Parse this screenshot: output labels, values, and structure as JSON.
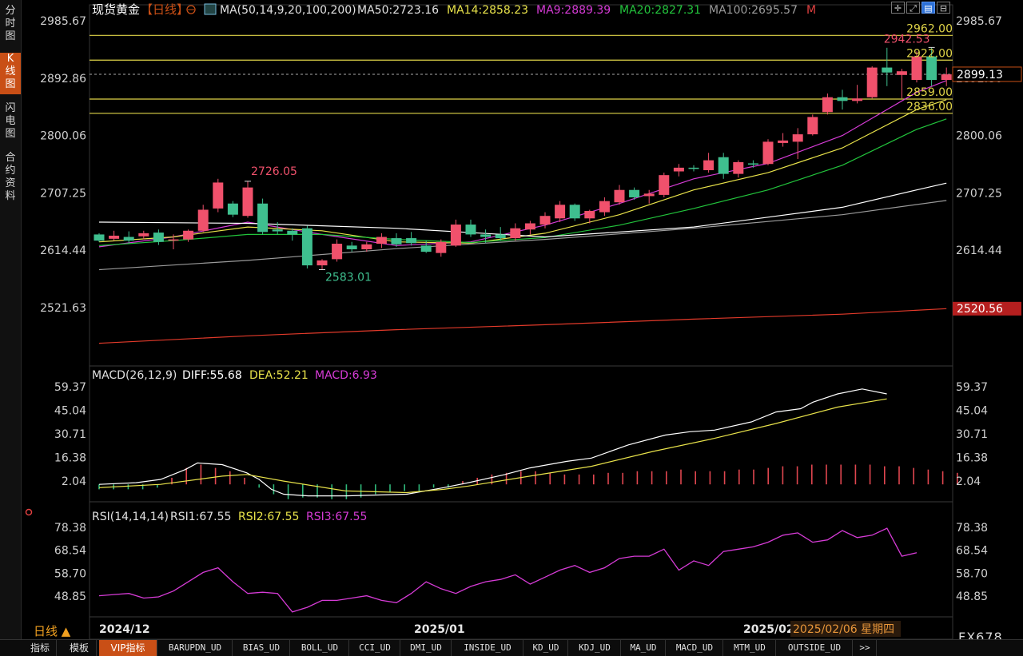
{
  "sidebar": {
    "tabs": [
      "分\n时\n图",
      "K\n线\n图",
      "闪\n电\n图",
      "合\n约\n资\n料"
    ],
    "active": 1
  },
  "header": {
    "title": "现货黄金",
    "period_tag": "【日线】",
    "ma_label": "MA(50,14,9,20,100,200)",
    "ma50": "MA50:2723.16",
    "ma14": "MA14:2858.23",
    "ma9": "MA9:2889.39",
    "ma20": "MA20:2827.31",
    "ma100": "MA100:2695.57",
    "m": "M",
    "toolbar_icons": [
      "crosshair-icon",
      "fullscreen-icon",
      "chart-type-icon",
      "minimize-icon"
    ]
  },
  "colors": {
    "up": "#f0516c",
    "down": "#3fbf8f",
    "ma50": "#ffffff",
    "ma14": "#e8e24a",
    "ma9": "#d63bd6",
    "ma20": "#22c43c",
    "ma100": "#9a9a9a",
    "ma200": "#e23a2a",
    "level": "#e0d448",
    "accent": "#c94f16"
  },
  "chart_data": [
    {
      "type": "candlestick",
      "title": "现货黄金 日线",
      "x_labels": [
        "2024/12",
        "2025/01",
        "2025/02"
      ],
      "date_readout": "2025/02/06 星期四",
      "y_ticks": [
        "2985.67",
        "2892.86",
        "2800.06",
        "2707.25",
        "2614.44",
        "2521.63"
      ],
      "ylim": [
        2450,
        3020
      ],
      "ohlc": [
        [
          2640,
          2642,
          2628,
          2630
        ],
        [
          2633,
          2646,
          2630,
          2638
        ],
        [
          2636,
          2645,
          2626,
          2630
        ],
        [
          2637,
          2646,
          2632,
          2642
        ],
        [
          2643,
          2648,
          2623,
          2628
        ],
        [
          2630,
          2640,
          2616,
          2632
        ],
        [
          2632,
          2648,
          2628,
          2646
        ],
        [
          2646,
          2688,
          2644,
          2680
        ],
        [
          2682,
          2730,
          2676,
          2724
        ],
        [
          2690,
          2694,
          2668,
          2672
        ],
        [
          2670,
          2726,
          2667,
          2716
        ],
        [
          2690,
          2698,
          2640,
          2644
        ],
        [
          2648,
          2660,
          2640,
          2645
        ],
        [
          2646,
          2650,
          2630,
          2640
        ],
        [
          2650,
          2654,
          2585,
          2590
        ],
        [
          2590,
          2600,
          2583,
          2598
        ],
        [
          2600,
          2632,
          2596,
          2625
        ],
        [
          2622,
          2628,
          2612,
          2616
        ],
        [
          2616,
          2628,
          2612,
          2624
        ],
        [
          2625,
          2642,
          2618,
          2636
        ],
        [
          2634,
          2642,
          2620,
          2624
        ],
        [
          2634,
          2644,
          2622,
          2626
        ],
        [
          2622,
          2630,
          2610,
          2612
        ],
        [
          2610,
          2632,
          2604,
          2628
        ],
        [
          2622,
          2664,
          2620,
          2656
        ],
        [
          2656,
          2664,
          2636,
          2640
        ],
        [
          2640,
          2648,
          2626,
          2636
        ],
        [
          2640,
          2652,
          2630,
          2634
        ],
        [
          2634,
          2658,
          2630,
          2650
        ],
        [
          2648,
          2662,
          2640,
          2658
        ],
        [
          2656,
          2676,
          2650,
          2670
        ],
        [
          2666,
          2694,
          2660,
          2688
        ],
        [
          2688,
          2690,
          2662,
          2666
        ],
        [
          2666,
          2680,
          2658,
          2678
        ],
        [
          2676,
          2700,
          2670,
          2694
        ],
        [
          2692,
          2720,
          2688,
          2712
        ],
        [
          2712,
          2716,
          2696,
          2700
        ],
        [
          2702,
          2712,
          2690,
          2706
        ],
        [
          2704,
          2740,
          2700,
          2736
        ],
        [
          2742,
          2754,
          2734,
          2748
        ],
        [
          2748,
          2752,
          2742,
          2746
        ],
        [
          2744,
          2772,
          2740,
          2760
        ],
        [
          2765,
          2772,
          2730,
          2738
        ],
        [
          2738,
          2760,
          2732,
          2757
        ],
        [
          2755,
          2760,
          2748,
          2754
        ],
        [
          2754,
          2794,
          2752,
          2790
        ],
        [
          2788,
          2804,
          2782,
          2792
        ],
        [
          2790,
          2812,
          2762,
          2802
        ],
        [
          2802,
          2834,
          2800,
          2830
        ],
        [
          2838,
          2868,
          2834,
          2862
        ],
        [
          2862,
          2874,
          2842,
          2856
        ],
        [
          2856,
          2882,
          2852,
          2860
        ],
        [
          2862,
          2912,
          2860,
          2910
        ],
        [
          2910,
          2942,
          2880,
          2902
        ],
        [
          2898,
          2908,
          2860,
          2904
        ],
        [
          2890,
          2936,
          2886,
          2928
        ],
        [
          2928,
          2943,
          2880,
          2890
        ],
        [
          2890,
          2910,
          2880,
          2899
        ]
      ],
      "price_labels": [
        "2726.05",
        "2583.01",
        "2942.53"
      ],
      "levels": [
        "2962.00",
        "2922.00",
        "2859.00",
        "2836.00"
      ],
      "current_price": "2899.13",
      "ma200_value": "2520.56",
      "series": [
        {
          "name": "MA9",
          "values": [
            [
              0,
              2620
            ],
            [
              5,
              2636
            ],
            [
              10,
              2660
            ],
            [
              15,
              2640
            ],
            [
              20,
              2622
            ],
            [
              25,
              2628
            ],
            [
              30,
              2655
            ],
            [
              35,
              2690
            ],
            [
              40,
              2730
            ],
            [
              45,
              2755
            ],
            [
              50,
              2800
            ],
            [
              55,
              2870
            ],
            [
              57,
              2889
            ]
          ]
        },
        {
          "name": "MA14",
          "values": [
            [
              0,
              2628
            ],
            [
              5,
              2636
            ],
            [
              10,
              2652
            ],
            [
              15,
              2646
            ],
            [
              20,
              2628
            ],
            [
              25,
              2626
            ],
            [
              30,
              2642
            ],
            [
              35,
              2672
            ],
            [
              40,
              2712
            ],
            [
              45,
              2740
            ],
            [
              50,
              2780
            ],
            [
              55,
              2842
            ],
            [
              57,
              2858
            ]
          ]
        },
        {
          "name": "MA20",
          "values": [
            [
              0,
              2622
            ],
            [
              5,
              2630
            ],
            [
              10,
              2640
            ],
            [
              15,
              2640
            ],
            [
              20,
              2632
            ],
            [
              25,
              2627
            ],
            [
              30,
              2635
            ],
            [
              35,
              2655
            ],
            [
              40,
              2682
            ],
            [
              45,
              2712
            ],
            [
              50,
              2752
            ],
            [
              55,
              2810
            ],
            [
              57,
              2827
            ]
          ]
        },
        {
          "name": "MA50",
          "values": [
            [
              0,
              2660
            ],
            [
              10,
              2658
            ],
            [
              20,
              2650
            ],
            [
              30,
              2636
            ],
            [
              40,
              2652
            ],
            [
              45,
              2668
            ],
            [
              50,
              2684
            ],
            [
              55,
              2712
            ],
            [
              57,
              2723
            ]
          ]
        },
        {
          "name": "MA100",
          "values": [
            [
              0,
              2583
            ],
            [
              10,
              2598
            ],
            [
              20,
              2617
            ],
            [
              30,
              2632
            ],
            [
              40,
              2650
            ],
            [
              50,
              2672
            ],
            [
              57,
              2695
            ]
          ]
        },
        {
          "name": "MA200",
          "values": [
            [
              0,
              2464
            ],
            [
              10,
              2476
            ],
            [
              20,
              2486
            ],
            [
              30,
              2494
            ],
            [
              40,
              2503
            ],
            [
              50,
              2511
            ],
            [
              57,
              2520
            ]
          ]
        }
      ]
    },
    {
      "type": "line",
      "title": "MACD(26,12,9)",
      "labels": {
        "diff": "DIFF:55.68",
        "dea": "DEA:52.21",
        "macd": "MACD:6.93"
      },
      "y_ticks": [
        "59.37",
        "45.04",
        "30.71",
        "16.38",
        "2.04"
      ],
      "ylim": [
        -12,
        64
      ],
      "series": [
        {
          "name": "DIFF",
          "values": [
            [
              0,
              0
            ],
            [
              3,
              1
            ],
            [
              5,
              3
            ],
            [
              7,
              9
            ],
            [
              8,
              13
            ],
            [
              10,
              12
            ],
            [
              12,
              7
            ],
            [
              13,
              3
            ],
            [
              14,
              -3
            ],
            [
              15,
              -6
            ],
            [
              17,
              -7
            ],
            [
              20,
              -7
            ],
            [
              25,
              -6
            ],
            [
              28,
              -2
            ],
            [
              30,
              1
            ],
            [
              33,
              6
            ],
            [
              35,
              10
            ],
            [
              38,
              14
            ],
            [
              40,
              16
            ],
            [
              43,
              24
            ],
            [
              46,
              30
            ],
            [
              48,
              32
            ],
            [
              50,
              33
            ],
            [
              53,
              38
            ],
            [
              55,
              44
            ],
            [
              57,
              46
            ],
            [
              58,
              50
            ],
            [
              60,
              55
            ],
            [
              62,
              58
            ],
            [
              64,
              55
            ]
          ]
        },
        {
          "name": "DEA",
          "values": [
            [
              0,
              -2
            ],
            [
              5,
              0
            ],
            [
              10,
              5
            ],
            [
              12,
              6
            ],
            [
              15,
              2
            ],
            [
              20,
              -4
            ],
            [
              25,
              -5
            ],
            [
              28,
              -3
            ],
            [
              30,
              -1
            ],
            [
              35,
              5
            ],
            [
              40,
              11
            ],
            [
              45,
              20
            ],
            [
              50,
              28
            ],
            [
              55,
              37
            ],
            [
              60,
              47
            ],
            [
              64,
              52
            ]
          ]
        }
      ],
      "histogram": [
        -3,
        -3,
        -3,
        -3,
        -2,
        4,
        10,
        12,
        10,
        8,
        4,
        -2,
        -6,
        -9,
        -8,
        -8,
        -9,
        -9,
        -8,
        -6,
        -5,
        -4,
        -4,
        -2,
        -2,
        2,
        4,
        6,
        7,
        8,
        8,
        7,
        6,
        6,
        6,
        7,
        7,
        8,
        8,
        8,
        9,
        8,
        8,
        8,
        9,
        9,
        10,
        11,
        11,
        12,
        12,
        12,
        12,
        12,
        11,
        11,
        10,
        9,
        8,
        7
      ]
    },
    {
      "type": "line",
      "title": "RSI(14,14,14)",
      "labels": {
        "rsi1": "RSI1:67.55",
        "rsi2": "RSI2:67.55",
        "rsi3": "RSI3:67.55"
      },
      "y_ticks": [
        "78.38",
        "68.54",
        "58.70",
        "48.85"
      ],
      "ylim": [
        38,
        85
      ],
      "series": [
        {
          "name": "RSI",
          "values": [
            [
              0,
              49
            ],
            [
              1,
              49.5
            ],
            [
              2,
              50
            ],
            [
              3,
              48
            ],
            [
              4,
              48.5
            ],
            [
              5,
              51
            ],
            [
              6,
              55
            ],
            [
              7,
              59
            ],
            [
              8,
              61
            ],
            [
              9,
              55
            ],
            [
              10,
              50
            ],
            [
              11,
              50.5
            ],
            [
              12,
              50
            ],
            [
              13,
              42
            ],
            [
              14,
              44
            ],
            [
              15,
              47
            ],
            [
              16,
              47
            ],
            [
              17,
              48
            ],
            [
              18,
              49
            ],
            [
              19,
              47
            ],
            [
              20,
              46
            ],
            [
              21,
              50
            ],
            [
              22,
              55
            ],
            [
              23,
              52
            ],
            [
              24,
              50
            ],
            [
              25,
              53
            ],
            [
              26,
              55
            ],
            [
              27,
              56
            ],
            [
              28,
              58
            ],
            [
              29,
              54
            ],
            [
              30,
              57
            ],
            [
              31,
              60
            ],
            [
              32,
              62
            ],
            [
              33,
              59
            ],
            [
              34,
              61
            ],
            [
              35,
              65
            ],
            [
              36,
              66
            ],
            [
              37,
              66
            ],
            [
              38,
              69
            ],
            [
              39,
              60
            ],
            [
              40,
              64
            ],
            [
              41,
              62
            ],
            [
              42,
              68
            ],
            [
              43,
              69
            ],
            [
              44,
              70
            ],
            [
              45,
              72
            ],
            [
              46,
              75
            ],
            [
              47,
              76
            ],
            [
              48,
              72
            ],
            [
              49,
              73
            ],
            [
              50,
              77
            ],
            [
              51,
              74
            ],
            [
              52,
              75
            ],
            [
              53,
              78
            ],
            [
              54,
              66
            ],
            [
              55,
              67.5
            ]
          ]
        }
      ]
    }
  ],
  "bottom": {
    "period": "日线 ▲",
    "tabs": [
      "指标",
      "模板",
      "VIP指标",
      "BARUPDN_UD",
      "BIAS_UD",
      "BOLL_UD",
      "CCI_UD",
      "DMI_UD",
      "INSIDE_UD",
      "KD_UD",
      "KDJ_UD",
      "MA_UD",
      "MACD_UD",
      "MTM_UD",
      "OUTSIDE_UD",
      ">>"
    ],
    "brand": "FX678"
  }
}
